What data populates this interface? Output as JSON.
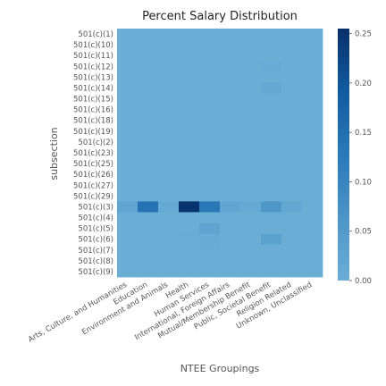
{
  "chart_data": {
    "type": "heatmap",
    "title": "Percent Salary Distribution",
    "xlabel": "NTEE Groupings",
    "ylabel": "subsection",
    "x_categories": [
      "Arts, Culture, and Humanities",
      "Education",
      "Environment and Animals",
      "Health",
      "Human Services",
      "International, Foreign Affairs",
      "Mutual/Membership Benefit",
      "Public, Societal Benefit",
      "Religion Related",
      "Unknown, Unclassified"
    ],
    "y_categories": [
      "501(c)(1)",
      "501(c)(10)",
      "501(c)(11)",
      "501(c)(12)",
      "501(c)(13)",
      "501(c)(14)",
      "501(c)(15)",
      "501(c)(16)",
      "501(c)(18)",
      "501(c)(19)",
      "501(c)(2)",
      "501(c)(23)",
      "501(c)(25)",
      "501(c)(26)",
      "501(c)(27)",
      "501(c)(29)",
      "501(c)(3)",
      "501(c)(4)",
      "501(c)(5)",
      "501(c)(6)",
      "501(c)(7)",
      "501(c)(8)",
      "501(c)(9)"
    ],
    "values": [
      [
        0,
        0,
        0,
        0,
        0,
        0,
        0,
        0,
        0,
        0
      ],
      [
        0,
        0,
        0,
        0,
        0,
        0,
        0,
        0,
        0,
        0
      ],
      [
        0,
        0,
        0,
        0,
        0,
        0,
        0,
        0,
        0,
        0
      ],
      [
        0,
        0,
        0,
        0,
        0,
        0,
        0,
        0.005,
        0,
        0
      ],
      [
        0,
        0,
        0,
        0,
        0,
        0,
        0,
        0,
        0,
        0
      ],
      [
        0,
        0,
        0,
        0,
        0,
        0,
        0,
        0.012,
        0,
        0
      ],
      [
        0,
        0,
        0,
        0,
        0,
        0,
        0,
        0,
        0,
        0
      ],
      [
        0,
        0,
        0,
        0,
        0,
        0,
        0,
        0,
        0,
        0
      ],
      [
        0,
        0,
        0,
        0,
        0,
        0,
        0,
        0,
        0,
        0
      ],
      [
        0,
        0,
        0,
        0,
        0,
        0,
        0,
        0,
        0,
        0
      ],
      [
        0,
        0,
        0,
        0,
        0,
        0,
        0,
        0,
        0,
        0
      ],
      [
        0,
        0,
        0,
        0,
        0,
        0,
        0,
        0,
        0,
        0
      ],
      [
        0,
        0,
        0,
        0,
        0,
        0,
        0,
        0,
        0,
        0
      ],
      [
        0,
        0,
        0,
        0,
        0,
        0,
        0,
        0,
        0,
        0
      ],
      [
        0,
        0,
        0,
        0,
        0,
        0,
        0,
        0,
        0,
        0
      ],
      [
        0,
        0,
        0,
        0,
        0,
        0,
        0,
        0,
        0,
        0
      ],
      [
        0.02,
        0.14,
        0.01,
        0.25,
        0.13,
        0.02,
        0.01,
        0.06,
        0.015,
        0.001
      ],
      [
        0,
        0,
        0,
        0,
        0,
        0,
        0,
        0,
        0,
        0
      ],
      [
        0,
        0,
        0,
        0,
        0.025,
        0,
        0,
        0,
        0,
        0
      ],
      [
        0,
        0,
        0,
        0.003,
        0.005,
        0,
        0,
        0.03,
        0,
        0
      ],
      [
        0,
        0,
        0,
        0,
        0.003,
        0,
        0,
        0,
        0,
        0
      ],
      [
        0,
        0,
        0,
        0,
        0,
        0,
        0,
        0,
        0,
        0
      ],
      [
        0,
        0,
        0,
        0,
        0,
        0,
        0,
        0,
        0,
        0
      ]
    ],
    "colorbar": {
      "range": [
        0,
        0.255
      ],
      "ticks": [
        "0.00",
        "0.05",
        "0.10",
        "0.15",
        "0.20",
        "0.25"
      ],
      "low_color": "#6aaed6",
      "high_color": "#08306b"
    }
  }
}
